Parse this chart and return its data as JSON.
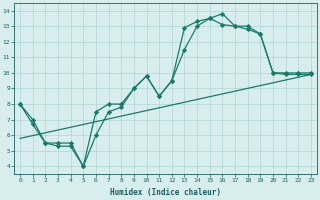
{
  "line1_x": [
    0,
    1,
    2,
    3,
    4,
    5,
    6,
    7,
    8,
    9,
    10,
    11,
    12,
    13,
    14,
    15,
    16,
    17,
    18,
    19,
    20,
    21,
    22,
    23
  ],
  "line1_y": [
    8.0,
    7.0,
    5.5,
    5.5,
    5.5,
    4.0,
    7.5,
    8.0,
    8.0,
    9.0,
    9.8,
    8.5,
    9.5,
    11.5,
    13.0,
    13.5,
    13.8,
    13.0,
    13.0,
    12.5,
    10.0,
    10.0,
    10.0,
    10.0
  ],
  "line2_x": [
    0,
    1,
    2,
    3,
    4,
    5,
    6,
    7,
    8,
    9,
    10,
    11,
    12,
    13,
    14,
    15,
    16,
    17,
    18,
    19,
    20,
    21,
    22,
    23
  ],
  "line2_y": [
    8.0,
    6.7,
    5.5,
    5.3,
    5.3,
    4.0,
    6.0,
    7.5,
    7.8,
    9.0,
    9.8,
    8.5,
    9.5,
    12.9,
    13.3,
    13.5,
    13.1,
    13.0,
    12.8,
    12.5,
    10.0,
    9.9,
    9.9,
    9.9
  ],
  "line3_x": [
    0,
    23
  ],
  "line3_y": [
    5.8,
    9.9
  ],
  "line_color": "#1a7a6a",
  "bg_color": "#d8eeee",
  "grid_color": "#b0d4d4",
  "xlabel": "Humidex (Indice chaleur)",
  "xlim": [
    -0.5,
    23.5
  ],
  "ylim": [
    3.5,
    14.5
  ],
  "xticks": [
    0,
    1,
    2,
    3,
    4,
    5,
    6,
    7,
    8,
    9,
    10,
    11,
    12,
    13,
    14,
    15,
    16,
    17,
    18,
    19,
    20,
    21,
    22,
    23
  ],
  "yticks": [
    4,
    5,
    6,
    7,
    8,
    9,
    10,
    11,
    12,
    13,
    14
  ]
}
